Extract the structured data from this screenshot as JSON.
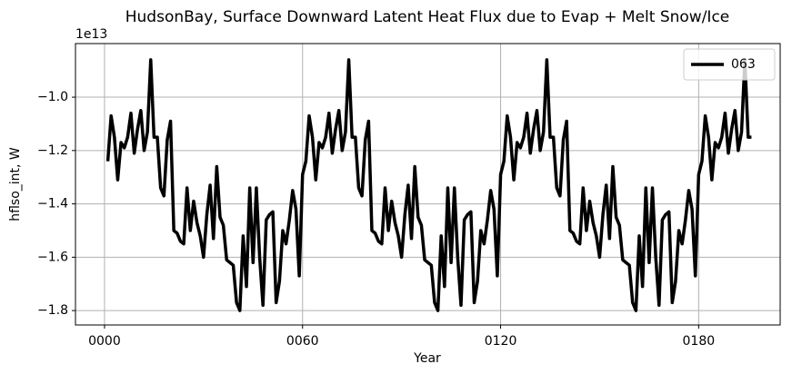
{
  "chart_data": {
    "type": "line",
    "title": "HudsonBay, Surface Downward Latent Heat Flux due to Evap + Melt Snow/Ice",
    "xlabel": "Year",
    "ylabel": "hflso_int, W",
    "y_offset_label": "1e13",
    "x": [
      1,
      2,
      3,
      4,
      5,
      6,
      7,
      8,
      9,
      10,
      11,
      12,
      13,
      14,
      15,
      16,
      17,
      18,
      19,
      20,
      21,
      22,
      23,
      24,
      25,
      26,
      27,
      28,
      29,
      30,
      31,
      32,
      33,
      34,
      35,
      36,
      37,
      38,
      39,
      40,
      41,
      42,
      43,
      44,
      45,
      46,
      47,
      48,
      49,
      50,
      51,
      52,
      53,
      54,
      55,
      56,
      57,
      58,
      59,
      60,
      61,
      62,
      63,
      64,
      65,
      66,
      67,
      68,
      69,
      70,
      71,
      72,
      73,
      74,
      75,
      76,
      77,
      78,
      79,
      80,
      81,
      82,
      83,
      84,
      85,
      86,
      87,
      88,
      89,
      90,
      91,
      92,
      93,
      94,
      95,
      96,
      97,
      98,
      99,
      100,
      101,
      102,
      103,
      104,
      105,
      106,
      107,
      108,
      109,
      110,
      111,
      112,
      113,
      114,
      115,
      116,
      117,
      118,
      119,
      120,
      121,
      122,
      123,
      124,
      125,
      126,
      127,
      128,
      129,
      130,
      131,
      132,
      133,
      134,
      135,
      136,
      137,
      138,
      139,
      140,
      141,
      142,
      143,
      144,
      145,
      146,
      147,
      148,
      149,
      150,
      151,
      152,
      153,
      154,
      155,
      156,
      157,
      158,
      159,
      160,
      161,
      162,
      163,
      164,
      165,
      166,
      167,
      168,
      169,
      170,
      171,
      172,
      173,
      174,
      175,
      176,
      177,
      178,
      179,
      180,
      181,
      182,
      183,
      184,
      185,
      186,
      187,
      188,
      189,
      190,
      191,
      192,
      193,
      194,
      195,
      196
    ],
    "series": [
      {
        "name": "063",
        "color": "#000000",
        "values": [
          -1.24,
          -1.07,
          -1.15,
          -1.31,
          -1.17,
          -1.19,
          -1.15,
          -1.06,
          -1.21,
          -1.12,
          -1.05,
          -1.2,
          -1.13,
          -0.86,
          -1.15,
          -1.15,
          -1.34,
          -1.37,
          -1.16,
          -1.09,
          -1.5,
          -1.51,
          -1.54,
          -1.55,
          -1.34,
          -1.5,
          -1.39,
          -1.47,
          -1.52,
          -1.6,
          -1.44,
          -1.33,
          -1.53,
          -1.26,
          -1.45,
          -1.48,
          -1.61,
          -1.62,
          -1.63,
          -1.77,
          -1.8,
          -1.52,
          -1.71,
          -1.34,
          -1.62,
          -1.34,
          -1.6,
          -1.78,
          -1.46,
          -1.44,
          -1.43,
          -1.77,
          -1.69,
          -1.5,
          -1.55,
          -1.46,
          -1.35,
          -1.42,
          -1.67,
          -1.29,
          -1.24,
          -1.07,
          -1.15,
          -1.31,
          -1.17,
          -1.19,
          -1.15,
          -1.06,
          -1.21,
          -1.12,
          -1.05,
          -1.2,
          -1.13,
          -0.86,
          -1.15,
          -1.15,
          -1.34,
          -1.37,
          -1.16,
          -1.09,
          -1.5,
          -1.51,
          -1.54,
          -1.55,
          -1.34,
          -1.5,
          -1.39,
          -1.47,
          -1.52,
          -1.6,
          -1.44,
          -1.33,
          -1.53,
          -1.26,
          -1.45,
          -1.48,
          -1.61,
          -1.62,
          -1.63,
          -1.77,
          -1.8,
          -1.52,
          -1.71,
          -1.34,
          -1.62,
          -1.34,
          -1.6,
          -1.78,
          -1.46,
          -1.44,
          -1.43,
          -1.77,
          -1.69,
          -1.5,
          -1.55,
          -1.46,
          -1.35,
          -1.42,
          -1.67,
          -1.29,
          -1.24,
          -1.07,
          -1.15,
          -1.31,
          -1.17,
          -1.19,
          -1.15,
          -1.06,
          -1.21,
          -1.12,
          -1.05,
          -1.2,
          -1.13,
          -0.86,
          -1.15,
          -1.15,
          -1.34,
          -1.37,
          -1.16,
          -1.09,
          -1.5,
          -1.51,
          -1.54,
          -1.55,
          -1.34,
          -1.5,
          -1.39,
          -1.47,
          -1.52,
          -1.6,
          -1.44,
          -1.33,
          -1.53,
          -1.26,
          -1.45,
          -1.48,
          -1.61,
          -1.62,
          -1.63,
          -1.77,
          -1.8,
          -1.52,
          -1.71,
          -1.34,
          -1.62,
          -1.34,
          -1.6,
          -1.78,
          -1.46,
          -1.44,
          -1.43,
          -1.77,
          -1.69,
          -1.5,
          -1.55,
          -1.46,
          -1.35,
          -1.42,
          -1.67,
          -1.29,
          -1.24,
          -1.07,
          -1.15,
          -1.31,
          -1.17,
          -1.19,
          -1.15,
          -1.06,
          -1.21,
          -1.12,
          -1.05,
          -1.2,
          -1.13,
          -0.86,
          -1.15,
          -1.15
        ]
      }
    ],
    "xlim": [
      -8.8,
      204.7
    ],
    "xticks": [
      {
        "value": 0,
        "label": "0000"
      },
      {
        "value": 60,
        "label": "0060"
      },
      {
        "value": 120,
        "label": "0120"
      },
      {
        "value": 180,
        "label": "0180"
      }
    ],
    "ylim": [
      -1.854,
      -0.799
    ],
    "yticks": [
      {
        "value": -1.8,
        "label": "−1.8"
      },
      {
        "value": -1.6,
        "label": "−1.6"
      },
      {
        "value": -1.4,
        "label": "−1.4"
      },
      {
        "value": -1.2,
        "label": "−1.2"
      },
      {
        "value": -1.0,
        "label": "−1.0"
      }
    ],
    "grid": true,
    "legend": "upper right"
  }
}
